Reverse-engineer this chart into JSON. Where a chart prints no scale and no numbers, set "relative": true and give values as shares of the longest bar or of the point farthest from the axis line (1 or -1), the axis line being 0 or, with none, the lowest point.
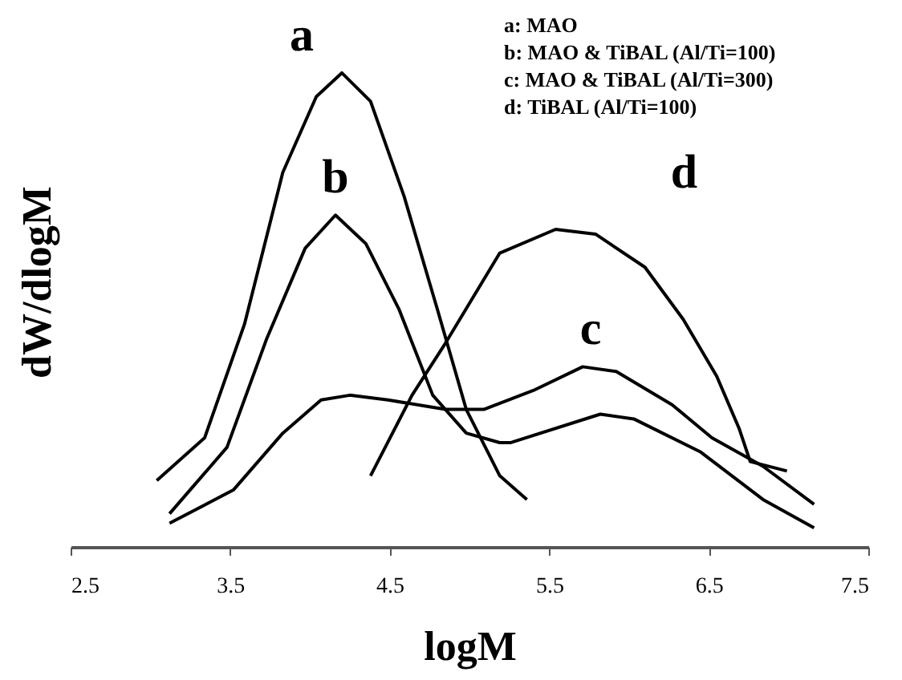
{
  "chart_data": {
    "type": "line",
    "relative": true,
    "xlabel": "logM",
    "ylabel": "dW/dlogM",
    "xlim": [
      2.5,
      7.5
    ],
    "xticks": [
      2.5,
      3.5,
      4.5,
      5.5,
      6.5,
      7.5
    ],
    "grid": false,
    "marker": "none",
    "line_style": "solid",
    "series": [
      {
        "color": "#000000",
        "x": [
          3.04,
          3.34,
          3.59,
          3.83,
          4.04,
          4.2,
          4.38,
          4.59,
          4.8,
          4.98,
          5.19,
          5.36
        ],
        "values": [
          0.14,
          0.23,
          0.47,
          0.79,
          0.95,
          1.0,
          0.94,
          0.74,
          0.5,
          0.29,
          0.15,
          0.1
        ]
      },
      {
        "color": "#000000",
        "x": [
          3.12,
          3.48,
          3.73,
          3.97,
          4.16,
          4.35,
          4.56,
          4.77,
          4.98,
          5.19,
          5.26,
          5.82,
          6.03,
          6.45,
          6.84,
          7.16
        ],
        "values": [
          0.07,
          0.21,
          0.44,
          0.63,
          0.7,
          0.64,
          0.5,
          0.32,
          0.24,
          0.22,
          0.22,
          0.28,
          0.27,
          0.2,
          0.1,
          0.04
        ]
      },
      {
        "color": "#000000",
        "x": [
          3.12,
          3.52,
          3.83,
          4.07,
          4.25,
          4.49,
          4.85,
          5.09,
          5.4,
          5.71,
          5.92,
          6.27,
          6.52,
          6.84,
          7.16
        ],
        "values": [
          0.05,
          0.12,
          0.24,
          0.31,
          0.32,
          0.31,
          0.29,
          0.29,
          0.33,
          0.38,
          0.37,
          0.3,
          0.23,
          0.17,
          0.09
        ]
      },
      {
        "color": "#000000",
        "x": [
          4.38,
          4.64,
          4.85,
          5.19,
          5.54,
          5.79,
          6.1,
          6.34,
          6.55,
          6.69,
          6.76,
          6.99
        ],
        "values": [
          0.15,
          0.32,
          0.43,
          0.62,
          0.67,
          0.66,
          0.59,
          0.48,
          0.36,
          0.25,
          0.18,
          0.16
        ]
      }
    ],
    "annotations": [
      "a",
      "b",
      "c",
      "d",
      "a: MAO",
      "b: MAO & TiBAL (Al/Ti=100)",
      "c: MAO & TiBAL (Al/Ti=300)",
      "d: TiBAL (Al/Ti=100)"
    ]
  }
}
